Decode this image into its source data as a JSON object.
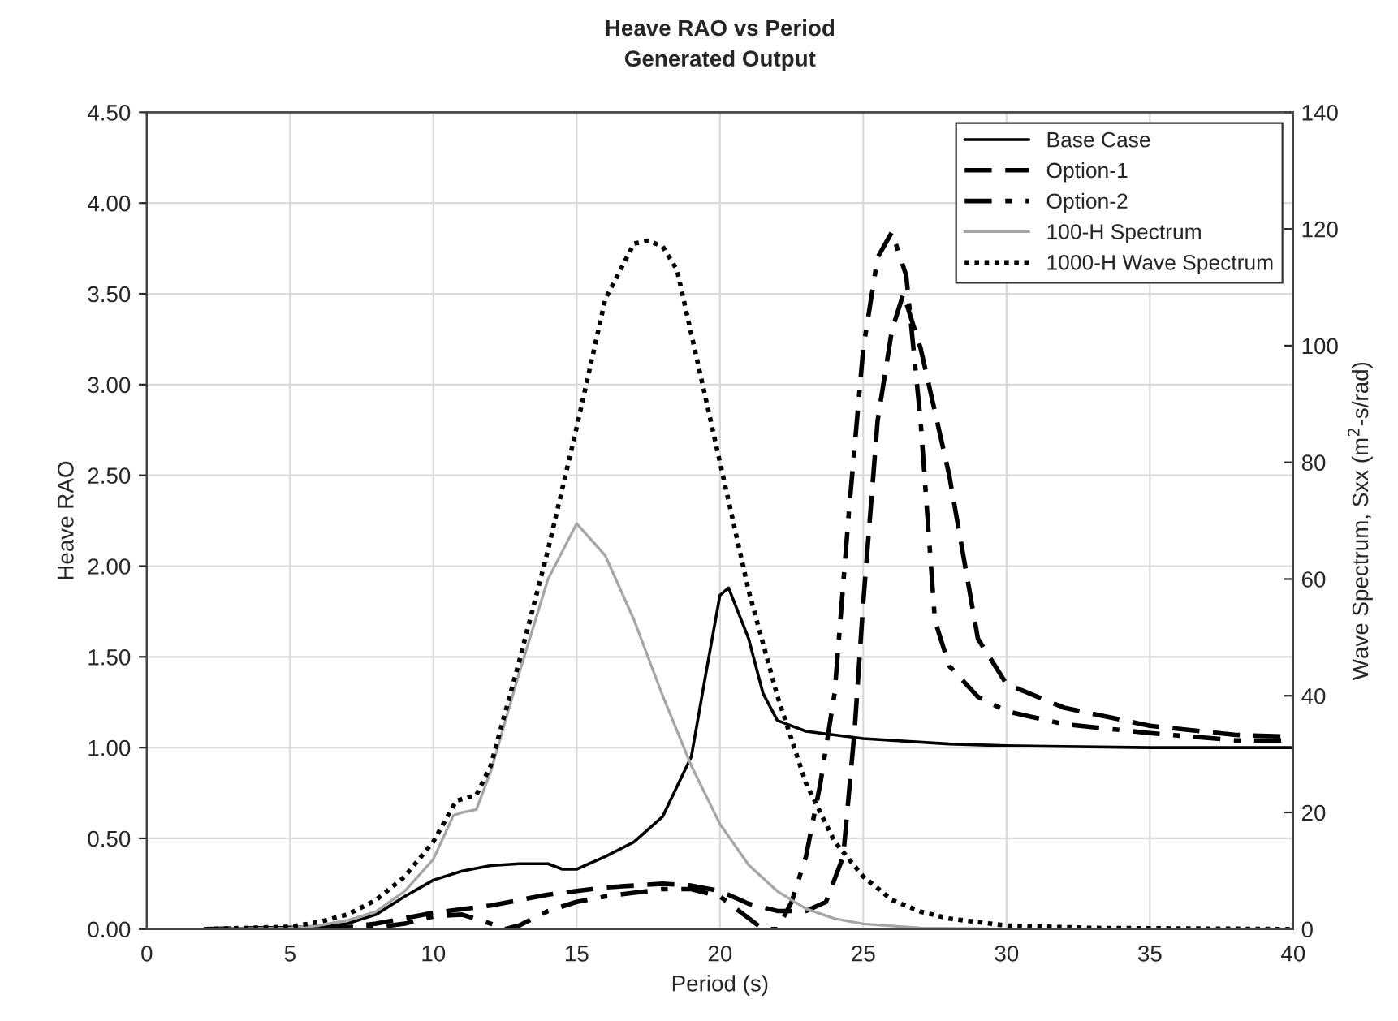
{
  "chart_data": {
    "type": "line",
    "title": "Heave RAO vs Period",
    "subtitle": "Generated Output",
    "xlabel": "Period (s)",
    "ylabel": "Heave RAO",
    "y2label": "Wave Spectrum, Sxx (m$^{2}$-s/rad)",
    "xlim": [
      0,
      40
    ],
    "xticks": [
      0,
      5,
      10,
      15,
      20,
      25,
      30,
      35,
      40
    ],
    "ylim": [
      0,
      4.5
    ],
    "yticks": [
      {
        "value": 0,
        "label": "0.00"
      },
      {
        "value": 0.5,
        "label": "0.50"
      },
      {
        "value": 1,
        "label": "1.00"
      },
      {
        "value": 1.5,
        "label": "1.50"
      },
      {
        "value": 2,
        "label": "2.00"
      },
      {
        "value": 2.5,
        "label": "2.50"
      },
      {
        "value": 3,
        "label": "3.00"
      },
      {
        "value": 3.5,
        "label": "3.50"
      },
      {
        "value": 4,
        "label": "4.00"
      },
      {
        "value": 4.5,
        "label": "4.50"
      }
    ],
    "y2lim": [
      0,
      140
    ],
    "y2ticks": [
      0,
      20,
      40,
      60,
      80,
      100,
      120,
      140
    ],
    "grid": true,
    "legend": "top right",
    "series": [
      {
        "name": "Base Case",
        "color": "#000000",
        "line_style": "solid",
        "x": [
          2,
          6,
          7,
          8,
          9,
          10,
          11,
          12,
          13,
          14,
          14.5,
          15,
          16,
          17,
          18,
          19,
          19.5,
          20,
          20.3,
          21,
          21.5,
          22,
          23,
          25,
          28,
          30,
          35,
          40
        ],
        "values": [
          0,
          0.01,
          0.03,
          0.08,
          0.18,
          0.27,
          0.32,
          0.35,
          0.36,
          0.36,
          0.33,
          0.33,
          0.4,
          0.48,
          0.62,
          0.95,
          1.4,
          1.84,
          1.88,
          1.6,
          1.3,
          1.15,
          1.09,
          1.05,
          1.02,
          1.01,
          1.0,
          1.0
        ]
      },
      {
        "name": "Option-1",
        "color": "#000000",
        "line_style": "dashed",
        "x": [
          2,
          7,
          8,
          9,
          10,
          11,
          12,
          13,
          14,
          15,
          16,
          17,
          18,
          19,
          20,
          21,
          22,
          23,
          23.7,
          24.3,
          24.7,
          25,
          25.5,
          26,
          26.4,
          27,
          28,
          29,
          30,
          32,
          35,
          38,
          40
        ],
        "values": [
          0,
          0.01,
          0.03,
          0.06,
          0.09,
          0.11,
          0.13,
          0.16,
          0.19,
          0.21,
          0.23,
          0.24,
          0.25,
          0.24,
          0.21,
          0.14,
          0.1,
          0.1,
          0.15,
          0.4,
          1.1,
          1.8,
          2.8,
          3.3,
          3.5,
          3.2,
          2.5,
          1.6,
          1.35,
          1.22,
          1.12,
          1.07,
          1.06
        ]
      },
      {
        "name": "Option-2",
        "color": "#000000",
        "line_style": "dashdot",
        "x": [
          2,
          8,
          9,
          10,
          11,
          12,
          12.5,
          13,
          14,
          15,
          16,
          17,
          18,
          19,
          20,
          21,
          21.5,
          22,
          22.5,
          23,
          23.5,
          24,
          24.5,
          25,
          25.5,
          26,
          26.5,
          27,
          27.5,
          28,
          29,
          30,
          32,
          35,
          38,
          40
        ],
        "values": [
          0,
          0.01,
          0.03,
          0.07,
          0.08,
          0.03,
          0,
          0.02,
          0.1,
          0.15,
          0.18,
          0.2,
          0.22,
          0.22,
          0.18,
          0.06,
          0,
          0,
          0.15,
          0.4,
          0.8,
          1.3,
          2.3,
          3.2,
          3.7,
          3.84,
          3.6,
          2.8,
          1.7,
          1.45,
          1.28,
          1.2,
          1.13,
          1.08,
          1.04,
          1.04
        ]
      },
      {
        "name": "100-H Spectrum",
        "color": "#a6a6a6",
        "line_style": "solid",
        "axis": "y2",
        "x": [
          2,
          5,
          6,
          7,
          8,
          9,
          10,
          10.7,
          11,
          11.5,
          12,
          13,
          14,
          15,
          16,
          17,
          18,
          19,
          20,
          21,
          22,
          23,
          24,
          25,
          27,
          30,
          40
        ],
        "values": [
          0,
          0.2,
          0.6,
          1.5,
          3,
          6.5,
          12,
          19.5,
          20,
          20.5,
          27,
          44,
          60,
          69.5,
          64,
          53,
          40,
          28,
          18,
          11,
          6.5,
          3.5,
          1.8,
          0.9,
          0.2,
          0,
          0
        ]
      },
      {
        "name": "1000-H Wave Spectrum",
        "color": "#000000",
        "line_style": "dotted",
        "axis": "y2",
        "x": [
          2,
          5,
          6,
          7,
          8,
          9,
          10,
          10.8,
          11.5,
          12,
          13,
          14,
          15,
          16,
          17,
          17.5,
          18,
          18.5,
          19,
          20,
          21,
          22,
          23,
          24,
          25,
          26,
          27,
          28,
          30,
          33,
          40
        ],
        "values": [
          0,
          0.4,
          1.2,
          2.5,
          5,
          9,
          15,
          22,
          23,
          28,
          46,
          65,
          86,
          108,
          117.5,
          118,
          117,
          113,
          102,
          80,
          58,
          40,
          25,
          15,
          9,
          5,
          3,
          1.8,
          0.6,
          0.2,
          0
        ]
      }
    ]
  }
}
